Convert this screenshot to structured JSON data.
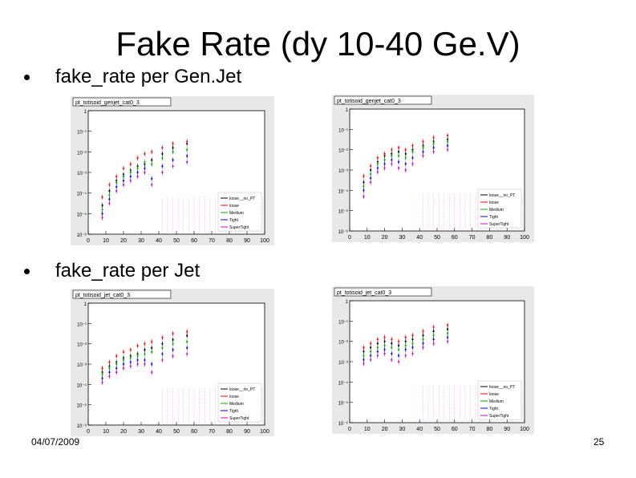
{
  "slide": {
    "title": "Fake Rate (dy 10-40 Ge.V)",
    "bullets": [
      "fake_rate per Gen.Jet",
      "fake_rate per Jet"
    ],
    "date": "04/07/2009",
    "page_number": "25"
  },
  "colors": {
    "frame_bg": "#e8e8e8",
    "plot_bg": "#ffffff",
    "grid": "#ff66ff"
  },
  "chart_data": [
    {
      "type": "scatter",
      "title": "pt_totisoid_genjet_cat0_3",
      "x_ticks": [
        "0",
        "10",
        "20",
        "30",
        "40",
        "50",
        "60",
        "70",
        "80",
        "90",
        "100"
      ],
      "y_ticks": [
        "1",
        "10⁻¹",
        "10⁻²",
        "10⁻³",
        "10⁻⁴",
        "10⁻⁵",
        "10⁻⁶"
      ],
      "xlim": [
        0,
        100
      ],
      "ylim_log10": [
        -6,
        0
      ],
      "legend": [
        "loose__no_PT",
        "loose",
        "Medium",
        "Tight",
        "SuperTight"
      ],
      "series": [
        {
          "name": "loose__no_PT",
          "color": "#000000",
          "x": [
            8,
            12,
            16,
            20,
            24,
            28,
            32,
            36,
            42,
            48,
            56
          ],
          "y": [
            -4.6,
            -3.9,
            -3.4,
            -3.1,
            -2.9,
            -2.7,
            -2.6,
            -2.4,
            -2.1,
            -1.8,
            -1.6
          ]
        },
        {
          "name": "loose",
          "color": "#ff0000",
          "x": [
            8,
            12,
            16,
            20,
            24,
            28,
            32,
            36,
            42,
            48,
            56
          ],
          "y": [
            -4.2,
            -3.6,
            -3.2,
            -2.8,
            -2.6,
            -2.3,
            -2.1,
            -2.0,
            -1.8,
            -1.6,
            -1.5
          ]
        },
        {
          "name": "Medium",
          "color": "#00aa00",
          "x": [
            8,
            12,
            16,
            20,
            24,
            28,
            32,
            36,
            42,
            48,
            56
          ],
          "y": [
            -4.8,
            -4.1,
            -3.5,
            -3.2,
            -3.0,
            -2.8,
            -2.5,
            -2.6,
            -2.3,
            -2.0,
            -1.9
          ]
        },
        {
          "name": "Tight",
          "color": "#0000ff",
          "x": [
            8,
            12,
            16,
            20,
            24,
            28,
            32,
            36,
            42,
            48,
            56
          ],
          "y": [
            -5.0,
            -4.3,
            -3.7,
            -3.4,
            -3.2,
            -3.0,
            -2.8,
            -3.3,
            -2.7,
            -2.4,
            -2.2
          ]
        },
        {
          "name": "SuperTight",
          "color": "#cc00cc",
          "x": [
            8,
            12,
            16,
            20,
            24,
            28,
            32,
            36,
            42,
            48,
            56
          ],
          "y": [
            -5.2,
            -4.5,
            -3.9,
            -3.6,
            -3.4,
            -3.2,
            -3.0,
            -3.6,
            -3.0,
            -2.7,
            -2.5
          ]
        }
      ]
    },
    {
      "type": "scatter",
      "title": "pt_totisoid_genjet_cat0_3",
      "x_ticks": [
        "0",
        "10",
        "20",
        "30",
        "40",
        "50",
        "60",
        "70",
        "80",
        "90",
        "100"
      ],
      "y_ticks": [
        "1",
        "10⁻¹",
        "10⁻²",
        "10⁻³",
        "10⁻⁴",
        "10⁻⁵",
        "10⁻⁶"
      ],
      "xlim": [
        0,
        100
      ],
      "ylim_log10": [
        -6,
        0
      ],
      "legend": [
        "loose__no_PT",
        "loose",
        "Medium",
        "Tight",
        "SuperTight"
      ],
      "series": [
        {
          "name": "loose__no_PT",
          "color": "#000000",
          "x": [
            8,
            12,
            16,
            20,
            24,
            28,
            32,
            36,
            42,
            48,
            56
          ],
          "y": [
            -3.6,
            -3.0,
            -2.6,
            -2.3,
            -2.2,
            -2.1,
            -2.2,
            -2.0,
            -1.8,
            -1.6,
            -1.5
          ]
        },
        {
          "name": "loose",
          "color": "#ff0000",
          "x": [
            8,
            12,
            16,
            20,
            24,
            28,
            32,
            36,
            42,
            48,
            56
          ],
          "y": [
            -3.3,
            -2.8,
            -2.4,
            -2.2,
            -2.0,
            -1.9,
            -2.0,
            -1.8,
            -1.6,
            -1.4,
            -1.3
          ]
        },
        {
          "name": "Medium",
          "color": "#00aa00",
          "x": [
            8,
            12,
            16,
            20,
            24,
            28,
            32,
            36,
            42,
            48,
            56
          ],
          "y": [
            -3.8,
            -3.2,
            -2.7,
            -2.5,
            -2.3,
            -2.3,
            -2.4,
            -2.1,
            -1.9,
            -1.7,
            -1.6
          ]
        },
        {
          "name": "Tight",
          "color": "#0000ff",
          "x": [
            8,
            12,
            16,
            20,
            24,
            28,
            32,
            36,
            42,
            48,
            56
          ],
          "y": [
            -4.0,
            -3.4,
            -2.9,
            -2.7,
            -2.5,
            -2.6,
            -2.7,
            -2.4,
            -2.1,
            -1.9,
            -1.8
          ]
        },
        {
          "name": "SuperTight",
          "color": "#cc00cc",
          "x": [
            8,
            12,
            16,
            20,
            24,
            28,
            32,
            36,
            42,
            48,
            56
          ],
          "y": [
            -4.3,
            -3.6,
            -3.1,
            -2.9,
            -2.7,
            -2.9,
            -3.0,
            -2.7,
            -2.3,
            -2.1,
            -2.0
          ]
        }
      ]
    },
    {
      "type": "scatter",
      "title": "pt_totisoid_jet_cat0_3",
      "x_ticks": [
        "0",
        "10",
        "20",
        "30",
        "40",
        "50",
        "60",
        "70",
        "80",
        "90",
        "100"
      ],
      "y_ticks": [
        "1",
        "10⁻¹",
        "10⁻²",
        "10⁻³",
        "10⁻⁴",
        "10⁻⁵",
        "10⁻⁶"
      ],
      "xlim": [
        0,
        100
      ],
      "ylim_log10": [
        -6,
        0
      ],
      "legend": [
        "loose__no_PT",
        "loose",
        "Medium",
        "Tight",
        "SuperTight"
      ],
      "series": [
        {
          "name": "loose__no_PT",
          "color": "#000000",
          "x": [
            8,
            12,
            16,
            20,
            24,
            28,
            32,
            36,
            42,
            48,
            56
          ],
          "y": [
            -3.4,
            -3.1,
            -2.9,
            -2.7,
            -2.6,
            -2.5,
            -2.3,
            -2.2,
            -2.0,
            -1.8,
            -1.6
          ]
        },
        {
          "name": "loose",
          "color": "#ff0000",
          "x": [
            8,
            12,
            16,
            20,
            24,
            28,
            32,
            36,
            42,
            48,
            56
          ],
          "y": [
            -3.2,
            -2.9,
            -2.6,
            -2.4,
            -2.3,
            -2.1,
            -2.0,
            -1.9,
            -1.7,
            -1.5,
            -1.4
          ]
        },
        {
          "name": "Medium",
          "color": "#00aa00",
          "x": [
            8,
            12,
            16,
            20,
            24,
            28,
            32,
            36,
            42,
            48,
            56
          ],
          "y": [
            -3.5,
            -3.2,
            -3.0,
            -2.8,
            -2.7,
            -2.6,
            -2.5,
            -2.4,
            -2.2,
            -2.0,
            -1.9
          ]
        },
        {
          "name": "Tight",
          "color": "#0000ff",
          "x": [
            8,
            12,
            16,
            20,
            24,
            28,
            32,
            36,
            42,
            48,
            56
          ],
          "y": [
            -3.7,
            -3.4,
            -3.2,
            -3.0,
            -2.9,
            -2.8,
            -2.8,
            -3.0,
            -2.5,
            -2.3,
            -2.2
          ]
        },
        {
          "name": "SuperTight",
          "color": "#cc00cc",
          "x": [
            8,
            12,
            16,
            20,
            24,
            28,
            32,
            36,
            42,
            48,
            56
          ],
          "y": [
            -3.9,
            -3.6,
            -3.4,
            -3.2,
            -3.1,
            -3.0,
            -3.0,
            -3.4,
            -2.8,
            -2.6,
            -2.5
          ]
        }
      ]
    },
    {
      "type": "scatter",
      "title": "pt_totisoid_jet_cat0_3",
      "x_ticks": [
        "0",
        "10",
        "20",
        "30",
        "40",
        "50",
        "60",
        "70",
        "80",
        "90",
        "100"
      ],
      "y_ticks": [
        "1",
        "10⁻¹",
        "10⁻²",
        "10⁻³",
        "10⁻⁴",
        "10⁻⁵",
        "10⁻⁶"
      ],
      "xlim": [
        0,
        100
      ],
      "ylim_log10": [
        -6,
        0
      ],
      "legend": [
        "loose__no_PT",
        "loose",
        "Medium",
        "Tight",
        "SuperTight"
      ],
      "series": [
        {
          "name": "loose__no_PT",
          "color": "#000000",
          "x": [
            8,
            12,
            16,
            20,
            24,
            28,
            32,
            36,
            42,
            48,
            56
          ],
          "y": [
            -2.5,
            -2.3,
            -2.1,
            -2.0,
            -2.1,
            -2.2,
            -2.0,
            -1.9,
            -1.7,
            -1.5,
            -1.4
          ]
        },
        {
          "name": "loose",
          "color": "#ff0000",
          "x": [
            8,
            12,
            16,
            20,
            24,
            28,
            32,
            36,
            42,
            48,
            56
          ],
          "y": [
            -2.3,
            -2.1,
            -1.9,
            -1.8,
            -1.9,
            -2.0,
            -1.8,
            -1.7,
            -1.5,
            -1.3,
            -1.2
          ]
        },
        {
          "name": "Medium",
          "color": "#00aa00",
          "x": [
            8,
            12,
            16,
            20,
            24,
            28,
            32,
            36,
            42,
            48,
            56
          ],
          "y": [
            -2.7,
            -2.5,
            -2.3,
            -2.2,
            -2.3,
            -2.4,
            -2.2,
            -2.1,
            -1.9,
            -1.7,
            -1.6
          ]
        },
        {
          "name": "Tight",
          "color": "#0000ff",
          "x": [
            8,
            12,
            16,
            20,
            24,
            28,
            32,
            36,
            42,
            48,
            56
          ],
          "y": [
            -2.9,
            -2.7,
            -2.5,
            -2.4,
            -2.6,
            -2.7,
            -2.4,
            -2.3,
            -2.1,
            -1.9,
            -1.8
          ]
        },
        {
          "name": "SuperTight",
          "color": "#cc00cc",
          "x": [
            8,
            12,
            16,
            20,
            24,
            28,
            32,
            36,
            42,
            48,
            56
          ],
          "y": [
            -3.1,
            -2.9,
            -2.7,
            -2.6,
            -2.9,
            -3.0,
            -2.7,
            -2.6,
            -2.3,
            -2.1,
            -2.0
          ]
        }
      ]
    }
  ]
}
